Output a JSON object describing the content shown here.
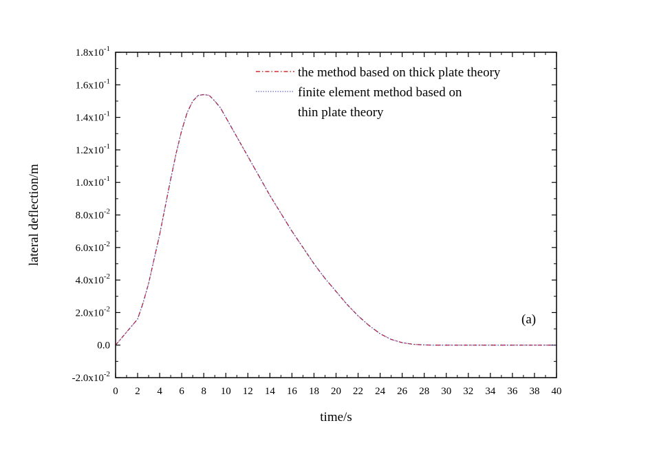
{
  "chart_data": {
    "type": "line",
    "xlabel": "time/s",
    "ylabel": "lateral deflection/m",
    "xlim": [
      0,
      40
    ],
    "ylim": [
      -0.02,
      0.18
    ],
    "grid": false,
    "legend_position": "top-right",
    "annotation": "(a)",
    "x_ticks": [
      0,
      2,
      4,
      6,
      8,
      10,
      12,
      14,
      16,
      18,
      20,
      22,
      24,
      26,
      28,
      30,
      32,
      34,
      36,
      38,
      40
    ],
    "x_tick_labels": [
      "0",
      "2",
      "4",
      "6",
      "8",
      "10",
      "12",
      "14",
      "16",
      "18",
      "20",
      "22",
      "24",
      "26",
      "28",
      "30",
      "32",
      "34",
      "36",
      "38",
      "40"
    ],
    "y_ticks": [
      -0.02,
      0.0,
      0.02,
      0.04,
      0.06,
      0.08,
      0.1,
      0.12,
      0.14,
      0.16,
      0.18
    ],
    "y_tick_labels": [
      {
        "mantissa": "-2.0x10",
        "exp": "-2"
      },
      {
        "mantissa": "0.0",
        "exp": ""
      },
      {
        "mantissa": "2.0x10",
        "exp": "-2"
      },
      {
        "mantissa": "4.0x10",
        "exp": "-2"
      },
      {
        "mantissa": "6.0x10",
        "exp": "-2"
      },
      {
        "mantissa": "8.0x10",
        "exp": "-2"
      },
      {
        "mantissa": "1.0x10",
        "exp": "-1"
      },
      {
        "mantissa": "1.2x10",
        "exp": "-1"
      },
      {
        "mantissa": "1.4x10",
        "exp": "-1"
      },
      {
        "mantissa": "1.6x10",
        "exp": "-1"
      },
      {
        "mantissa": "1.8x10",
        "exp": "-1"
      }
    ],
    "series": [
      {
        "name": "the method based on thick plate theory",
        "color": "#cc0000",
        "style": "dash-dot",
        "x": [
          0,
          0.5,
          1,
          1.5,
          2,
          2.5,
          3,
          3.5,
          4,
          4.5,
          5,
          5.5,
          6,
          6.5,
          7,
          7.5,
          8,
          8.5,
          9,
          9.5,
          10,
          11,
          12,
          13,
          14,
          15,
          16,
          17,
          18,
          19,
          20,
          21,
          22,
          23,
          24,
          25,
          26,
          27,
          28,
          29,
          30,
          32,
          34,
          36,
          38,
          40
        ],
        "y": [
          0,
          0.004,
          0.008,
          0.012,
          0.016,
          0.026,
          0.038,
          0.053,
          0.068,
          0.085,
          0.102,
          0.118,
          0.132,
          0.143,
          0.15,
          0.1535,
          0.154,
          0.1535,
          0.15,
          0.146,
          0.14,
          0.128,
          0.116,
          0.104,
          0.092,
          0.081,
          0.07,
          0.06,
          0.05,
          0.041,
          0.033,
          0.025,
          0.018,
          0.012,
          0.007,
          0.0035,
          0.0015,
          0.0005,
          0.0001,
          0,
          0,
          0,
          0,
          0,
          0,
          0
        ]
      },
      {
        "name": "finite element method based on\nthin plate theory",
        "name_lines": [
          "finite element method based on",
          "thin plate theory"
        ],
        "color": "#6666cc",
        "style": "dotted",
        "x": [
          0,
          0.5,
          1,
          1.5,
          2,
          2.5,
          3,
          3.5,
          4,
          4.5,
          5,
          5.5,
          6,
          6.5,
          7,
          7.5,
          8,
          8.5,
          9,
          9.5,
          10,
          11,
          12,
          13,
          14,
          15,
          16,
          17,
          18,
          19,
          20,
          21,
          22,
          23,
          24,
          25,
          26,
          27,
          28,
          29,
          30,
          32,
          34,
          36,
          38,
          40
        ],
        "y": [
          0,
          0.004,
          0.008,
          0.012,
          0.016,
          0.026,
          0.038,
          0.053,
          0.068,
          0.085,
          0.102,
          0.118,
          0.132,
          0.143,
          0.15,
          0.1535,
          0.154,
          0.1535,
          0.15,
          0.146,
          0.14,
          0.128,
          0.116,
          0.104,
          0.092,
          0.081,
          0.07,
          0.06,
          0.05,
          0.041,
          0.033,
          0.025,
          0.018,
          0.012,
          0.007,
          0.0035,
          0.0015,
          0.0005,
          0.0001,
          0,
          0,
          0,
          0,
          0,
          0,
          0
        ]
      }
    ]
  }
}
